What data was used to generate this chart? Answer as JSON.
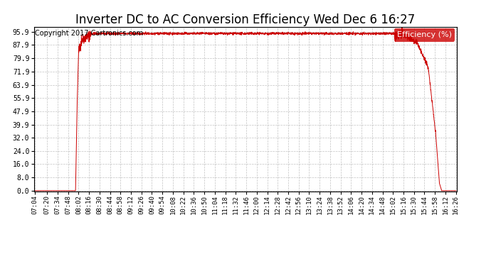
{
  "title": "Inverter DC to AC Conversion Efficiency Wed Dec 6 16:27",
  "copyright": "Copyright 2017 Cartronics.com",
  "legend_label": "Efficiency (%)",
  "legend_bg": "#cc0000",
  "legend_fg": "#ffffff",
  "line_color": "#cc0000",
  "bg_color": "#ffffff",
  "plot_bg_color": "#ffffff",
  "grid_color": "#999999",
  "yticks": [
    0.0,
    8.0,
    16.0,
    24.0,
    32.0,
    39.9,
    47.9,
    55.9,
    63.9,
    71.9,
    79.9,
    87.9,
    95.9
  ],
  "ylim": [
    -0.5,
    99.0
  ],
  "xtick_labels": [
    "07:04",
    "07:20",
    "07:34",
    "07:48",
    "08:02",
    "08:16",
    "08:30",
    "08:44",
    "08:58",
    "09:12",
    "09:26",
    "09:40",
    "09:54",
    "10:08",
    "10:22",
    "10:36",
    "10:50",
    "11:04",
    "11:18",
    "11:32",
    "11:46",
    "12:00",
    "12:14",
    "12:28",
    "12:42",
    "12:56",
    "13:10",
    "13:24",
    "13:38",
    "13:52",
    "14:06",
    "14:20",
    "14:34",
    "14:48",
    "15:02",
    "15:16",
    "15:30",
    "15:44",
    "15:58",
    "16:12",
    "16:26"
  ],
  "title_fontsize": 12,
  "copyright_fontsize": 7,
  "axis_fontsize": 7,
  "legend_fontsize": 8
}
